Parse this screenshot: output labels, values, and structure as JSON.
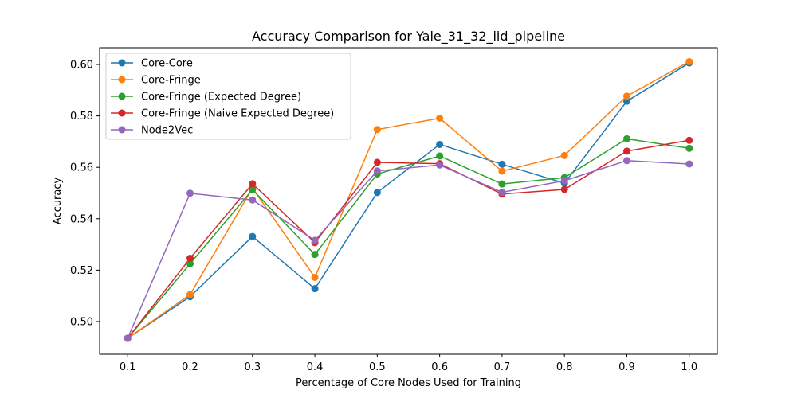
{
  "chart_data": {
    "type": "line",
    "title": "Accuracy Comparison for Yale_31_32_iid_pipeline",
    "xlabel": "Percentage of Core Nodes Used for Training",
    "ylabel": "Accuracy",
    "x": [
      0.1,
      0.2,
      0.3,
      0.4,
      0.5,
      0.6,
      0.7,
      0.8,
      0.9,
      1.0
    ],
    "x_tick_labels": [
      "0.1",
      "0.2",
      "0.3",
      "0.4",
      "0.5",
      "0.6",
      "0.7",
      "0.8",
      "0.9",
      "1.0"
    ],
    "y_ticks": [
      0.5,
      0.52,
      0.54,
      0.56,
      0.58,
      0.6
    ],
    "y_tick_labels": [
      "0.50",
      "0.52",
      "0.54",
      "0.56",
      "0.58",
      "0.60"
    ],
    "xlim": [
      0.055,
      1.045
    ],
    "ylim": [
      0.4873,
      0.6065
    ],
    "grid": false,
    "legend_position": "upper-left",
    "series": [
      {
        "name": "Core-Core",
        "color": "#1f77b4",
        "values": [
          0.4935,
          0.5097,
          0.5331,
          0.5128,
          0.5502,
          0.5689,
          0.5612,
          0.5538,
          0.5857,
          0.6006
        ]
      },
      {
        "name": "Core-Fringe",
        "color": "#ff7f0e",
        "values": [
          0.4935,
          0.5105,
          0.5519,
          0.5172,
          0.5747,
          0.5791,
          0.5585,
          0.5646,
          0.5877,
          0.6011
        ]
      },
      {
        "name": "Core-Fringe (Expected Degree)",
        "color": "#2ca02c",
        "values": [
          0.4935,
          0.5225,
          0.5513,
          0.5261,
          0.5574,
          0.5644,
          0.5535,
          0.556,
          0.5711,
          0.5674
        ]
      },
      {
        "name": "Core-Fringe (Naive Expected Degree)",
        "color": "#d62728",
        "values": [
          0.4935,
          0.5246,
          0.5536,
          0.5307,
          0.5619,
          0.5614,
          0.5496,
          0.5514,
          0.5663,
          0.5705
        ]
      },
      {
        "name": "Node2Vec",
        "color": "#9467bd",
        "values": [
          0.4935,
          0.5499,
          0.5473,
          0.5316,
          0.5586,
          0.5609,
          0.5503,
          0.5548,
          0.5626,
          0.5613
        ]
      }
    ]
  }
}
